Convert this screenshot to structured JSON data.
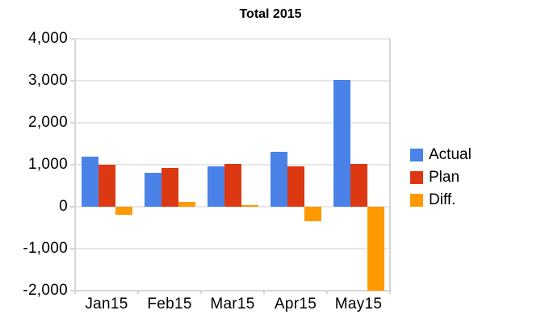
{
  "title": "Total 2015",
  "colors": {
    "actual": "#4A82E8",
    "plan": "#DC3912",
    "diff": "#FF9900",
    "gridline": "#E7E7E7",
    "axis": "#D6D6D6",
    "text": "#000000",
    "background": "#FFFFFF"
  },
  "chart_data": {
    "type": "bar",
    "title": "Total 2015",
    "categories": [
      "Jan15",
      "Feb15",
      "Mar15",
      "Apr15",
      "May15"
    ],
    "series": [
      {
        "name": "Actual",
        "color": "#4A82E8",
        "values": [
          1190,
          800,
          970,
          1310,
          3010
        ]
      },
      {
        "name": "Plan",
        "color": "#DC3912",
        "values": [
          1000,
          930,
          1020,
          970,
          1010
        ]
      },
      {
        "name": "Diff.",
        "color": "#FF9900",
        "values": [
          -190,
          120,
          40,
          -340,
          -2000
        ]
      }
    ],
    "ylim": [
      -2000,
      4000
    ],
    "ytick_step": 1000,
    "ytick_labels": [
      "4,000",
      "3,000",
      "2,000",
      "1,000",
      "0",
      "-1,000",
      "-2,000"
    ],
    "xlabel": "",
    "ylabel": "",
    "grid": true,
    "legend_position": "right"
  }
}
